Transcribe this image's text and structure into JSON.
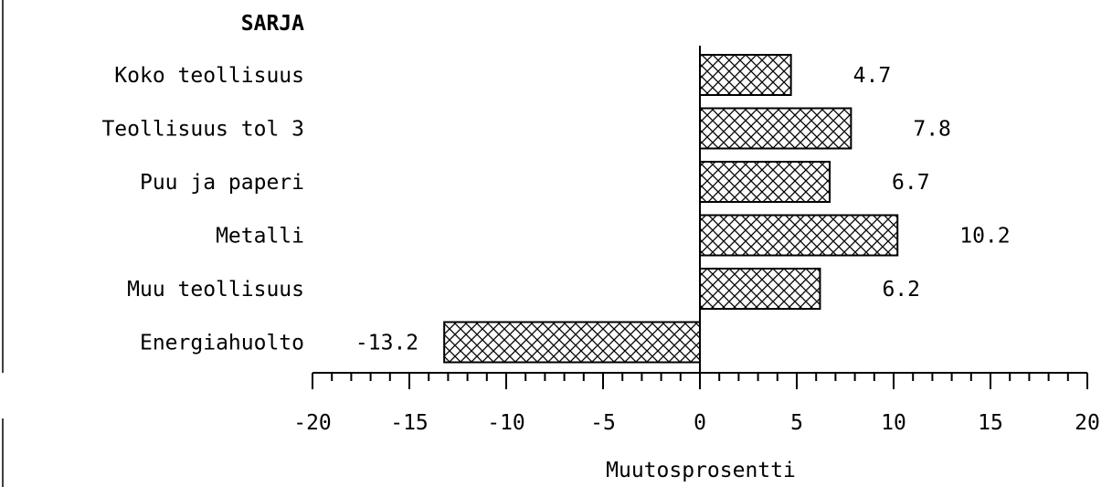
{
  "chart_data": {
    "type": "bar",
    "orientation": "horizontal",
    "category_header": "SARJA",
    "categories": [
      "Koko teollisuus",
      "Teollisuus tol 3",
      "Puu ja paperi",
      "Metalli",
      "Muu teollisuus",
      "Energiahuolto"
    ],
    "values": [
      4.7,
      7.8,
      6.7,
      10.2,
      6.2,
      -13.2
    ],
    "value_labels": [
      "4.7",
      "7.8",
      "6.7",
      "10.2",
      "6.2",
      "-13.2"
    ],
    "xlabel": "Muutosprosentti",
    "xlim": [
      -20,
      20
    ],
    "xticks": [
      -20,
      -15,
      -10,
      -5,
      0,
      5,
      10,
      15,
      20
    ],
    "xtick_labels": [
      "-20",
      "-15",
      "-10",
      "-5",
      "0",
      "5",
      "10",
      "15",
      "20"
    ],
    "bar_pattern": "cross-hatch",
    "grid": false,
    "legend": "none"
  }
}
